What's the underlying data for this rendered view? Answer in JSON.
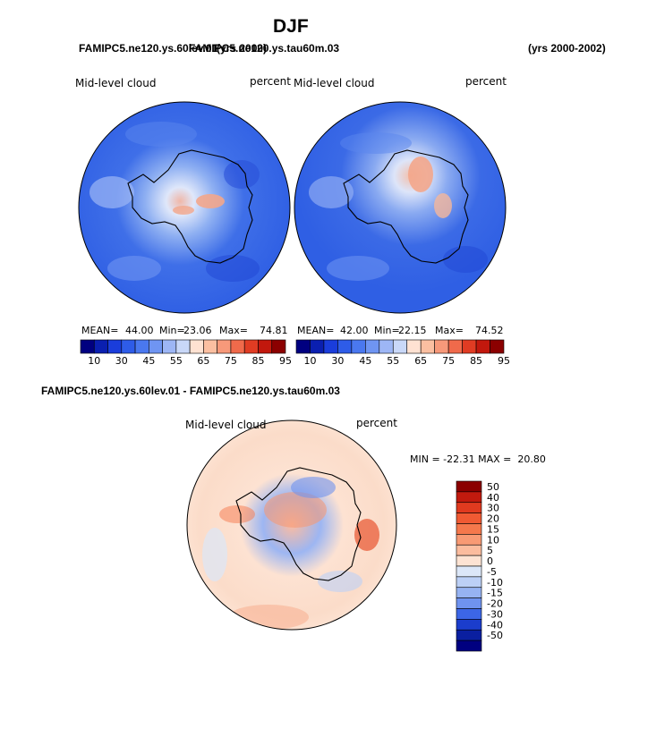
{
  "page": {
    "title": "DJF",
    "top_left_case_a": "FAMIPC5.ne120.ys.60lev.01",
    "top_left_case_b": "FAMIPC5.ne120.ys.tau60m.03",
    "top_left_overlap_years": "(yrs 2000)",
    "top_right_years": "(yrs 2000-2002)",
    "diff_title": "FAMIPC5.ne120.ys.60lev.01 - FAMIPC5.ne120.ys.tau60m.03"
  },
  "panels": [
    {
      "variable": "Mid-level cloud",
      "units": "percent",
      "mean_label": "MEAN=",
      "mean": "44.00",
      "min_label": "Min=",
      "min": "23.06",
      "max_label": "Max=",
      "max": "74.81"
    },
    {
      "variable": "Mid-level cloud",
      "units": "percent",
      "mean_label": "MEAN=",
      "mean": "42.00",
      "min_label": "Min=",
      "min": "22.15",
      "max_label": "Max=",
      "max": "74.52"
    }
  ],
  "diff_panel": {
    "variable": "Mid-level cloud",
    "units": "percent",
    "minmax_text": "MIN = -22.31 MAX =  20.80"
  },
  "colorbar_abs": {
    "labels": [
      "10",
      "30",
      "45",
      "55",
      "65",
      "75",
      "85",
      "95"
    ],
    "colors": [
      "#000080",
      "#0a1fb0",
      "#1a3ddb",
      "#2e5ce8",
      "#4a78ef",
      "#6f95f2",
      "#9db6f5",
      "#c9d8f8",
      "#ffe2d2",
      "#fbbfa1",
      "#f7997a",
      "#f06a4b",
      "#e03c23",
      "#c2180d",
      "#8b0000"
    ]
  },
  "colorbar_diff": {
    "labels": [
      "50",
      "40",
      "30",
      "20",
      "15",
      "10",
      "5",
      "0",
      "-5",
      "-10",
      "-15",
      "-20",
      "-30",
      "-40",
      "-50"
    ],
    "colors": [
      "#8b0000",
      "#c21a0e",
      "#e03a1f",
      "#f05a33",
      "#f5784c",
      "#f89a74",
      "#fbbc9e",
      "#fde3d3",
      "#dce7f8",
      "#bcd0f6",
      "#96b3f2",
      "#6f93ef",
      "#3c66e6",
      "#1b3dcc",
      "#0a1fa0",
      "#000080"
    ]
  },
  "icons": {
    "antarctica_outline": "antarctica-coastline-icon"
  }
}
